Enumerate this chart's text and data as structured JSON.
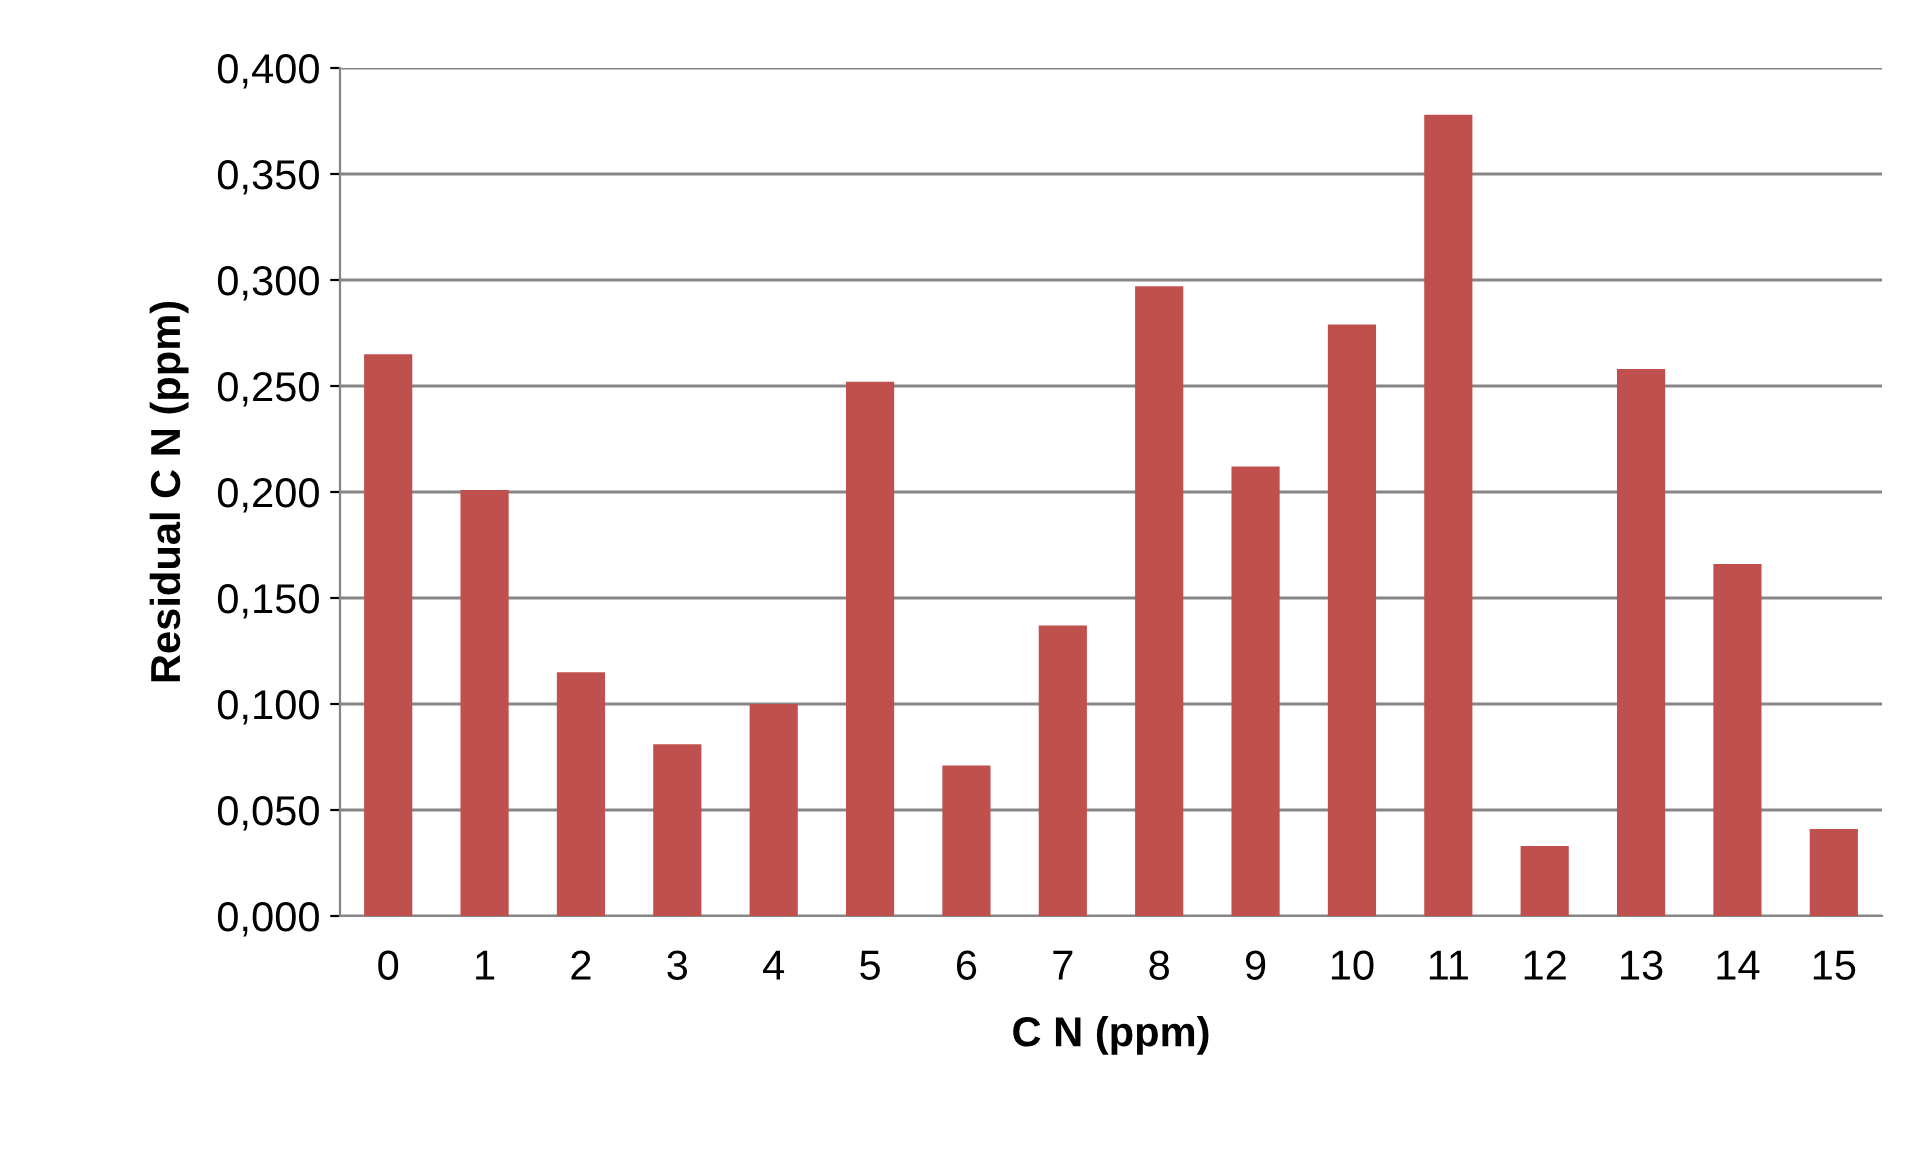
{
  "chart_data": {
    "type": "bar",
    "xlabel": "C N (ppm)",
    "ylabel": "Residual C N (ppm)",
    "categories": [
      "0",
      "1",
      "2",
      "3",
      "4",
      "5",
      "6",
      "7",
      "8",
      "9",
      "10",
      "11",
      "12",
      "13",
      "14",
      "15"
    ],
    "values": [
      0.265,
      0.201,
      0.115,
      0.081,
      0.1,
      0.252,
      0.071,
      0.137,
      0.297,
      0.212,
      0.279,
      0.378,
      0.033,
      0.258,
      0.166,
      0.041
    ],
    "color": "#c0504d",
    "ylim": [
      0,
      0.4
    ],
    "yticks": [
      {
        "value": 0,
        "label": "0,000"
      },
      {
        "value": 0.05,
        "label": "0,050"
      },
      {
        "value": 0.1,
        "label": "0,100"
      },
      {
        "value": 0.15,
        "label": "0,150"
      },
      {
        "value": 0.2,
        "label": "0,200"
      },
      {
        "value": 0.25,
        "label": "0,250"
      },
      {
        "value": 0.3,
        "label": "0,300"
      },
      {
        "value": 0.35,
        "label": "0,350"
      },
      {
        "value": 0.4,
        "label": "0,400"
      }
    ],
    "grid": "y",
    "legend": false
  }
}
